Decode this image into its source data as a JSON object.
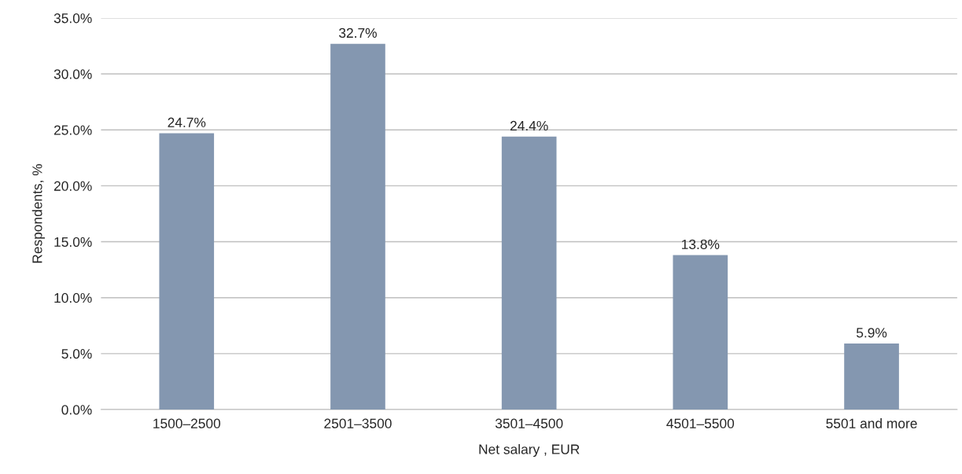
{
  "chart_data": {
    "type": "bar",
    "xlabel": "Net salary , EUR",
    "ylabel": "Respondents, %",
    "categories": [
      "1500–2500",
      "2501–3500",
      "3501–4500",
      "4501–5500",
      "5501 and more"
    ],
    "values": [
      24.7,
      32.7,
      24.4,
      13.8,
      5.9
    ],
    "value_labels": [
      "24.7%",
      "32.7%",
      "24.4%",
      "13.8%",
      "5.9%"
    ],
    "color": "#8497b0",
    "ylim": [
      0,
      35
    ],
    "yticks": [
      {
        "value": 0,
        "label": "0.0%"
      },
      {
        "value": 5,
        "label": "5.0%"
      },
      {
        "value": 10,
        "label": "10.0%"
      },
      {
        "value": 15,
        "label": "15.0%"
      },
      {
        "value": 20,
        "label": "20.0%"
      },
      {
        "value": 25,
        "label": "25.0%"
      },
      {
        "value": 30,
        "label": "30.0%"
      },
      {
        "value": 35,
        "label": "35.0%"
      }
    ],
    "grid": "y"
  }
}
